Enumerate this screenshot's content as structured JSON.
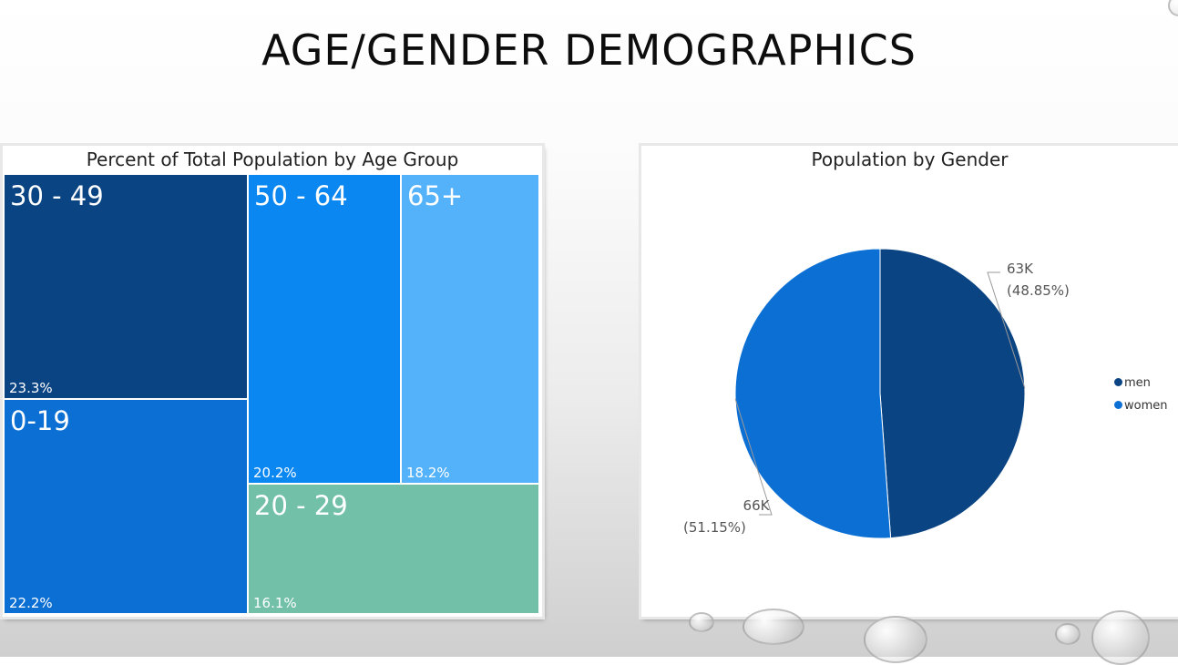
{
  "slide": {
    "title": "AGE/GENDER DEMOGRAPHICS"
  },
  "chart_data": [
    {
      "type": "treemap",
      "title": "Percent of Total Population by Age Group",
      "items": [
        {
          "label": "30 - 49",
          "value": 23.3,
          "display": "23.3%",
          "color": "#0b4483"
        },
        {
          "label": "0-19",
          "value": 22.2,
          "display": "22.2%",
          "color": "#0c6fd4"
        },
        {
          "label": "50 - 64",
          "value": 20.2,
          "display": "20.2%",
          "color": "#0a87f0"
        },
        {
          "label": "65+",
          "value": 18.2,
          "display": "18.2%",
          "color": "#54b2fa"
        },
        {
          "label": "20 - 29",
          "value": 16.1,
          "display": "16.1%",
          "color": "#72c0a8"
        }
      ]
    },
    {
      "type": "pie",
      "title": "Population by Gender",
      "slices": [
        {
          "name": "men",
          "value": 63000,
          "value_label": "63K",
          "percent_label": "(48.85%)",
          "color": "#0b4483"
        },
        {
          "name": "women",
          "value": 66000,
          "value_label": "66K",
          "percent_label": "(51.15%)",
          "color": "#0c6fd4"
        }
      ],
      "legend": [
        "men",
        "women"
      ],
      "legend_position": "right"
    }
  ]
}
